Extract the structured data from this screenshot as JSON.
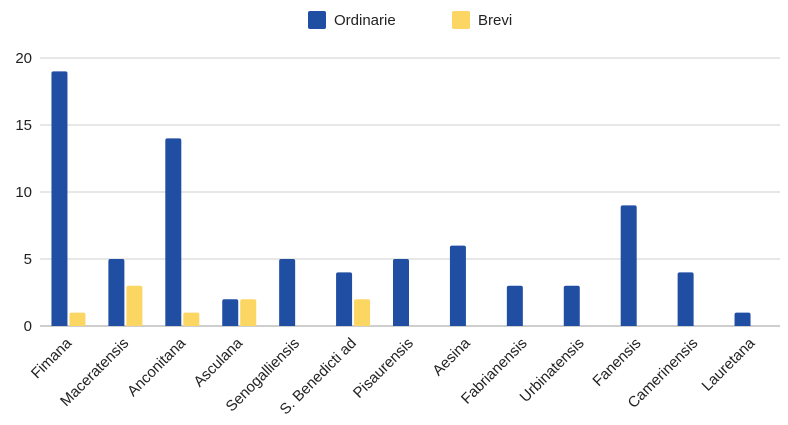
{
  "chart_data": {
    "type": "bar",
    "categories": [
      "Fimana",
      "Maceratensis",
      "Anconitana",
      "Asculana",
      "Senogalliensis",
      "S. Benedicti ad",
      "Pisaurensis",
      "Aesina",
      "Fabrianensis",
      "Urbinatensis",
      "Fanensis",
      "Camerinensis",
      "Lauretana"
    ],
    "series": [
      {
        "name": "Ordinarie",
        "color": "#1f4ea3",
        "values": [
          19,
          5,
          14,
          2,
          5,
          4,
          5,
          6,
          3,
          3,
          9,
          4,
          1
        ]
      },
      {
        "name": "Brevi",
        "color": "#fcd663",
        "values": [
          1,
          3,
          1,
          2,
          0,
          2,
          0,
          0,
          0,
          0,
          0,
          0,
          0
        ]
      }
    ],
    "ylim": [
      0,
      20
    ],
    "yticks": [
      0,
      5,
      10,
      15,
      20
    ],
    "grid": true,
    "legend_position": "top-center",
    "title": "",
    "xlabel": "",
    "ylabel": ""
  }
}
